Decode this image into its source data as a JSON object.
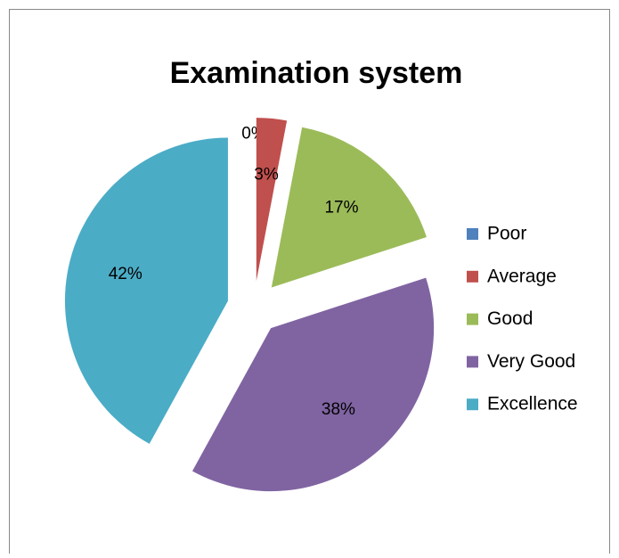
{
  "chart_data": {
    "type": "pie",
    "title": "Examination system",
    "categories": [
      "Poor",
      "Average",
      "Good",
      "Very Good",
      "Excellence"
    ],
    "values": [
      0,
      3,
      17,
      38,
      42
    ],
    "value_labels": [
      "0%",
      "3%",
      "17%",
      "38%",
      "42%"
    ],
    "colors": [
      "#4F81BD",
      "#C0504D",
      "#9BBB59",
      "#8064A2",
      "#4BACC6"
    ],
    "legend": "right"
  }
}
